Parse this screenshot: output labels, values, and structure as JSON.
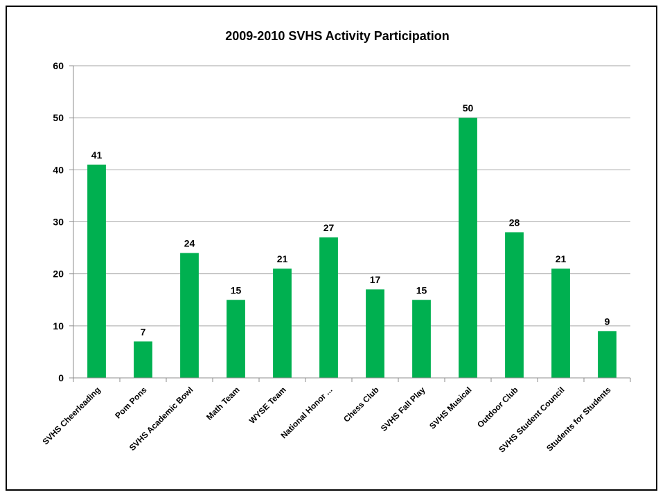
{
  "colors": {
    "bar": "#00B050",
    "grid": "#a6a6a6",
    "axis": "#8c8c8c",
    "border": "#000000"
  },
  "chart_data": {
    "type": "bar",
    "title": "2009-2010 SVHS Activity Participation",
    "xlabel": "",
    "ylabel": "",
    "ylim": [
      0,
      60
    ],
    "yticks": [
      0,
      10,
      20,
      30,
      40,
      50,
      60
    ],
    "grid": true,
    "legend": "none",
    "categories": [
      "SVHS Cheerleading",
      "Pom Pons",
      "SVHS Academic Bowl",
      "Math Team",
      "WYSE Team",
      "National Honor ...",
      "Chess Club",
      "SVHS Fall Play",
      "SVHS Musical",
      "Outdoor Club",
      "SVHS Student Council",
      "Students for Students"
    ],
    "values": [
      41,
      7,
      24,
      15,
      21,
      27,
      17,
      15,
      50,
      28,
      21,
      9
    ],
    "data_labels": true
  }
}
